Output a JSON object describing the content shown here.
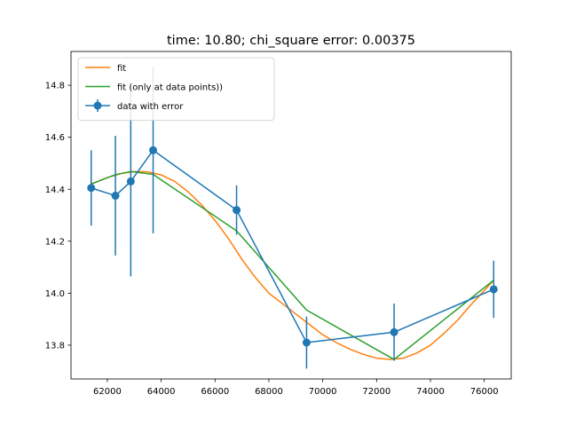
{
  "chart_data": {
    "type": "line",
    "title": "time: 10.80; chi_square error: 0.00375",
    "xlabel": "",
    "ylabel": "",
    "xlim": [
      60650,
      77000
    ],
    "ylim": [
      14.93,
      13.67
    ],
    "y_inverted": true,
    "grid": false,
    "legend_position": "top-left",
    "x_ticks": [
      62000,
      64000,
      66000,
      68000,
      70000,
      72000,
      74000,
      76000
    ],
    "x_tick_labels": [
      "62000",
      "64000",
      "66000",
      "68000",
      "70000",
      "72000",
      "74000",
      "76000"
    ],
    "y_ticks": [
      13.8,
      14.0,
      14.2,
      14.4,
      14.6,
      14.8
    ],
    "y_tick_labels": [
      "13.8",
      "14.0",
      "14.2",
      "14.4",
      "14.6",
      "14.8"
    ],
    "series": [
      {
        "name": "fit",
        "kind": "line",
        "color": "#ff7f0e",
        "x": [
          61400,
          62000,
          62500,
          63000,
          63500,
          64000,
          64500,
          65000,
          65500,
          66000,
          66500,
          67000,
          67500,
          68000,
          68500,
          69000,
          69500,
          70000,
          70500,
          71000,
          71500,
          72000,
          72500,
          73000,
          73500,
          74000,
          74500,
          75000,
          75500,
          76000,
          76350
        ],
        "y": [
          14.42,
          14.445,
          14.46,
          14.468,
          14.467,
          14.455,
          14.43,
          14.39,
          14.34,
          14.28,
          14.21,
          14.13,
          14.06,
          14.0,
          13.96,
          13.92,
          13.88,
          13.84,
          13.81,
          13.785,
          13.765,
          13.75,
          13.745,
          13.75,
          13.77,
          13.8,
          13.845,
          13.895,
          13.955,
          14.01,
          14.05
        ]
      },
      {
        "name": "fit (only at data points))",
        "kind": "line",
        "color": "#2ca02c",
        "x": [
          61400,
          62300,
          62870,
          63700,
          66800,
          69400,
          72650,
          76350
        ],
        "y": [
          14.42,
          14.456,
          14.468,
          14.457,
          14.24,
          13.935,
          13.745,
          14.05
        ]
      },
      {
        "name": "data with error",
        "kind": "errorbar",
        "color": "#1f77b4",
        "x": [
          61400,
          62300,
          62870,
          63700,
          66800,
          69400,
          72650,
          76350
        ],
        "y": [
          14.405,
          14.375,
          14.43,
          14.55,
          14.32,
          13.81,
          13.85,
          14.015
        ],
        "yerr": [
          0.145,
          0.23,
          0.365,
          0.32,
          0.095,
          0.1,
          0.11,
          0.11
        ]
      }
    ]
  }
}
